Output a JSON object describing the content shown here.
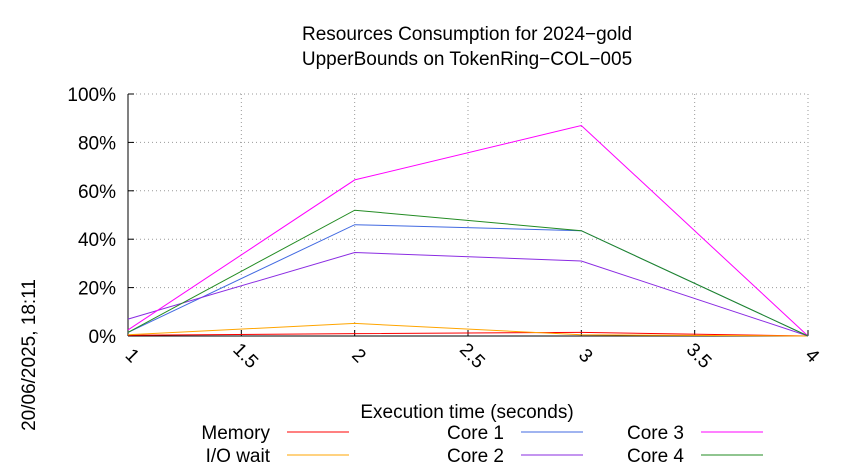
{
  "chart_data": {
    "type": "line",
    "title_lines": [
      "Resources Consumption for 2024−gold",
      "UpperBounds on TokenRing−COL−005"
    ],
    "xlabel": "Execution time (seconds)",
    "ylabel": "",
    "side_label": "20/06/2025, 18:11",
    "xlim": [
      1,
      4
    ],
    "ylim": [
      0,
      100
    ],
    "x_ticks": [
      1,
      1.5,
      2,
      2.5,
      3,
      3.5,
      4
    ],
    "x_tick_labels": [
      "1",
      "1.5",
      "2",
      "2.5",
      "3",
      "3.5",
      "4"
    ],
    "y_ticks": [
      0,
      20,
      40,
      60,
      80,
      100
    ],
    "y_tick_labels": [
      "0%",
      "20%",
      "40%",
      "60%",
      "80%",
      "100%"
    ],
    "grid": true,
    "legend_position": "bottom",
    "x": [
      1,
      2,
      3,
      4
    ],
    "series": [
      {
        "name": "Memory",
        "color": "#ff0000",
        "values": [
          0.3,
          1.0,
          1.5,
          0
        ]
      },
      {
        "name": "I/O wait",
        "color": "#ffa500",
        "values": [
          0.5,
          5.2,
          0.5,
          0
        ]
      },
      {
        "name": "Core 1",
        "color": "#4169e1",
        "values": [
          1.5,
          46,
          43.5,
          0
        ]
      },
      {
        "name": "Core 2",
        "color": "#8a2be2",
        "values": [
          7,
          34.5,
          31,
          0
        ]
      },
      {
        "name": "Core 3",
        "color": "#ff00ff",
        "values": [
          2.5,
          64.5,
          87,
          0
        ]
      },
      {
        "name": "Core 4",
        "color": "#228b22",
        "values": [
          1.5,
          52,
          43.5,
          0
        ]
      }
    ]
  }
}
